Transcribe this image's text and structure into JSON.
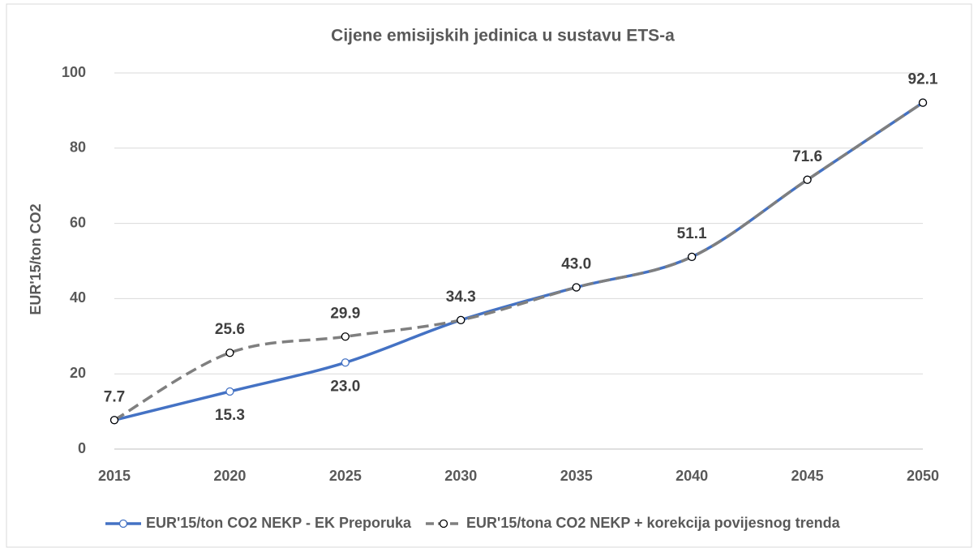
{
  "chart_data": {
    "type": "line",
    "title": "Cijene emisijskih jedinica u sustavu ETS-a",
    "y_label": "EUR'15/ton CO2",
    "x": [
      2015,
      2020,
      2025,
      2030,
      2035,
      2040,
      2045,
      2050
    ],
    "xlim": [
      2015,
      2050
    ],
    "xticks": [
      2015,
      2020,
      2025,
      2030,
      2035,
      2040,
      2045,
      2050
    ],
    "ylim": [
      0,
      100
    ],
    "yticks": [
      0,
      20,
      40,
      60,
      80,
      100
    ],
    "grid": true,
    "legend": "bottom",
    "series": [
      {
        "name": "EUR'15/ton CO2 NEKP - EK Preporuka",
        "color": "#4472c4",
        "dashed": false,
        "values": [
          7.7,
          15.3,
          23.0,
          34.3,
          43.0,
          51.1,
          71.6,
          92.1
        ],
        "value_labels": [
          null,
          "15.3",
          "23.0",
          null,
          null,
          null,
          null,
          null
        ]
      },
      {
        "name": "EUR'15/tona CO2 NEKP + korekcija povijesnog trenda",
        "color": "#7f7f7f",
        "dashed": true,
        "values": [
          7.7,
          25.6,
          29.9,
          34.3,
          43.0,
          51.1,
          71.6,
          92.1
        ],
        "value_labels": [
          "7.7",
          "25.6",
          "29.9",
          "34.3",
          "43.0",
          "51.1",
          "71.6",
          "92.1"
        ]
      }
    ]
  }
}
